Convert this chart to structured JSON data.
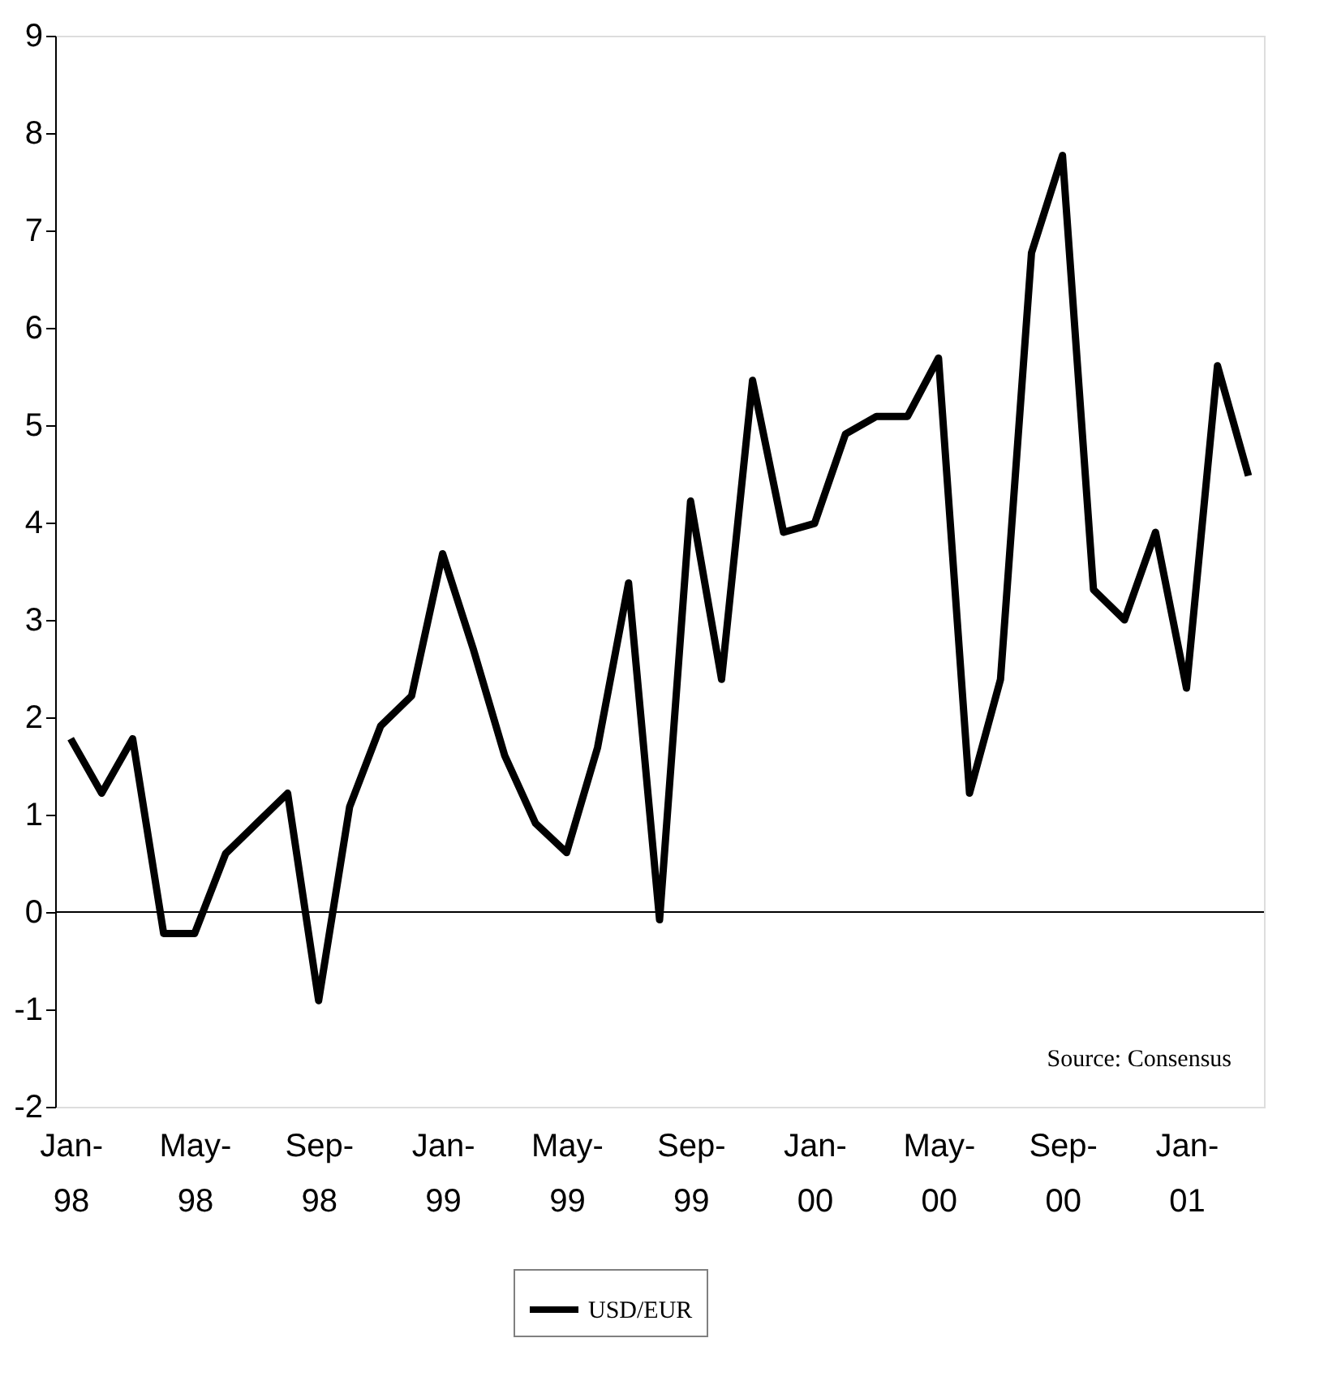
{
  "chart_data": {
    "type": "line",
    "categories": [
      "Jan-98",
      null,
      null,
      null,
      "May-98",
      null,
      null,
      null,
      "Sep-98",
      null,
      null,
      null,
      "Jan-99",
      null,
      null,
      null,
      "May-99",
      null,
      null,
      null,
      "Sep-99",
      null,
      null,
      null,
      "Jan-00",
      null,
      null,
      null,
      "May-00",
      null,
      null,
      null,
      "Sep-00",
      null,
      null,
      null,
      "Jan-01",
      null,
      null
    ],
    "series": [
      {
        "name": "USD/EUR",
        "color": "#000000",
        "values": [
          1.78,
          1.22,
          1.78,
          -0.22,
          -0.22,
          0.6,
          0.91,
          1.22,
          -0.91,
          1.08,
          1.91,
          2.22,
          3.68,
          2.69,
          1.61,
          0.91,
          0.61,
          1.69,
          3.38,
          -0.08,
          4.22,
          2.39,
          5.46,
          3.9,
          3.99,
          4.91,
          5.09,
          5.09,
          5.69,
          1.22,
          2.39,
          6.77,
          7.77,
          3.31,
          3.0,
          3.9,
          2.3,
          5.61,
          4.48
        ]
      }
    ],
    "ylim": [
      -2,
      9
    ],
    "yticks": [
      -2,
      -1,
      0,
      1,
      2,
      3,
      4,
      5,
      6,
      7,
      8,
      9
    ],
    "grid": false,
    "legend": "bottom",
    "ref_lines": [
      {
        "axis": "y",
        "value": 0
      }
    ],
    "annotations": [
      "Source: Consensus"
    ]
  }
}
